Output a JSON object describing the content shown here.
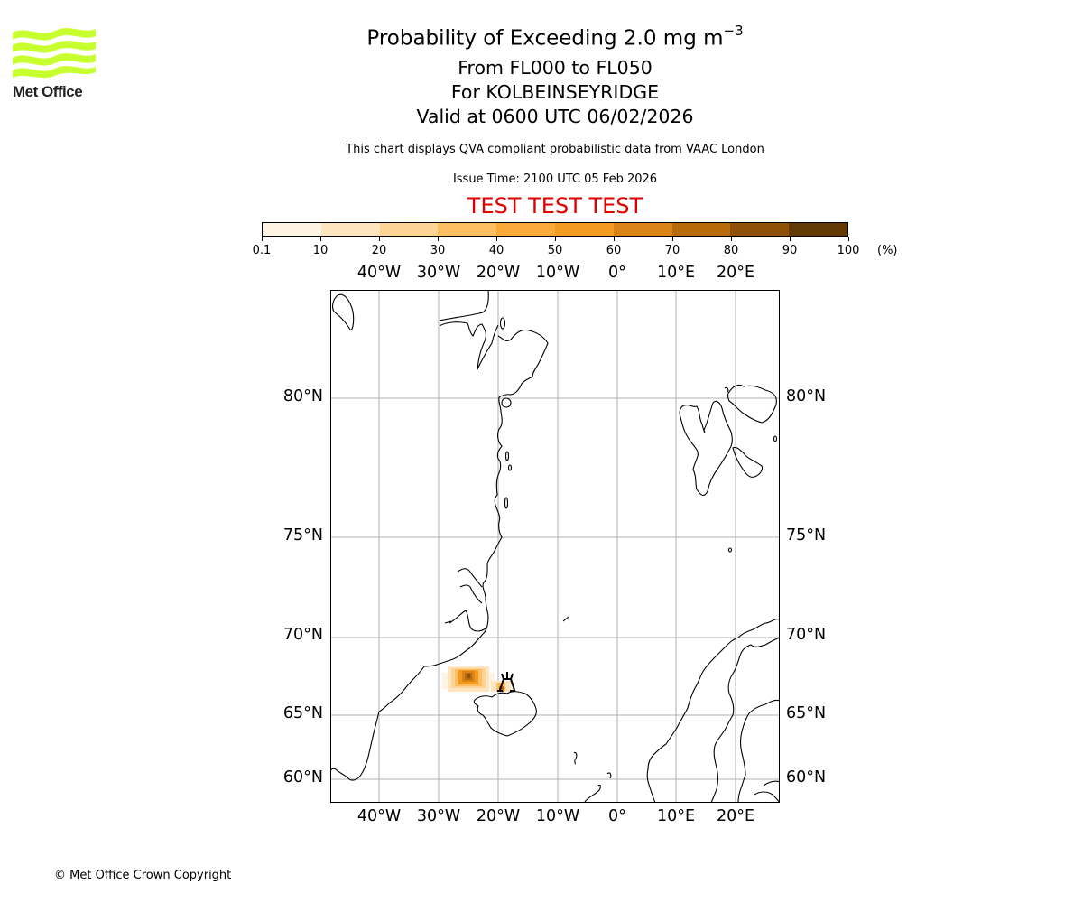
{
  "logo": {
    "name": "Met Office",
    "color": "#c8ff2e"
  },
  "header": {
    "title_prefix": "Probability of Exceeding 2.0 mg m",
    "title_superscript": "−3",
    "level_range": "From FL000 to FL050",
    "location": "For KOLBEINSEYRIDGE",
    "valid_time": "Valid at 0600 UTC 06/02/2026",
    "source_note": "This chart displays QVA compliant probabilistic data from VAAC London",
    "issue_time": "Issue Time: 2100 UTC 05 Feb 2026",
    "test_banner": "TEST TEST TEST",
    "test_banner_color": "#e00000"
  },
  "colorbar": {
    "unit": "(%)",
    "ticks": [
      "0.1",
      "10",
      "20",
      "30",
      "40",
      "50",
      "60",
      "70",
      "80",
      "90",
      "100"
    ],
    "colors": [
      "#fef4e4",
      "#fee5c0",
      "#fed496",
      "#fdbf62",
      "#fba93b",
      "#f29a22",
      "#da8316",
      "#b86b0b",
      "#8f5107",
      "#633906"
    ]
  },
  "map": {
    "lon_labels": [
      "40°W",
      "30°W",
      "20°W",
      "10°W",
      "0°",
      "10°E",
      "20°E"
    ],
    "lat_labels": [
      "80°N",
      "75°N",
      "70°N",
      "65°N",
      "60°N"
    ],
    "volcano_marker": "Kolbeinsey Ridge volcano symbol",
    "grid_color": "#b0b0b0"
  },
  "chart_data": {
    "type": "heatmap",
    "title": "Probability of Exceeding 2.0 mg m^-3, From FL000 to FL050, For KOLBEINSEYRIDGE, Valid at 0600 UTC 06/02/2026",
    "subtitle": "This chart displays QVA compliant probabilistic data from VAAC London; Issue Time: 2100 UTC 05 Feb 2026",
    "projection": "polar stereographic style map of North Atlantic / Greenland Sea",
    "xlabel": "Longitude",
    "ylabel": "Latitude",
    "x_ticks": [
      "40°W",
      "30°W",
      "20°W",
      "10°W",
      "0°",
      "10°E",
      "20°E"
    ],
    "y_ticks": [
      "80°N",
      "75°N",
      "70°N",
      "65°N",
      "60°N"
    ],
    "grid": true,
    "colorbar": {
      "levels": [
        0.1,
        10,
        20,
        30,
        40,
        50,
        60,
        70,
        80,
        90,
        100
      ],
      "unit": "%",
      "position": "top"
    },
    "plume": {
      "description": "Ash probability plume between east Greenland coast and north of Iceland",
      "approx_center_lon": -24,
      "approx_center_lat": 67.5,
      "max_probability_band": "80-90",
      "secondary_patch": {
        "approx_lon": -19,
        "approx_lat": 67,
        "band": "70-80"
      }
    },
    "volcano": {
      "name": "KOLBEINSEYRIDGE",
      "approx_lon": -18.5,
      "approx_lat": 67.2
    }
  },
  "footer": {
    "copyright": "© Met Office Crown Copyright"
  }
}
